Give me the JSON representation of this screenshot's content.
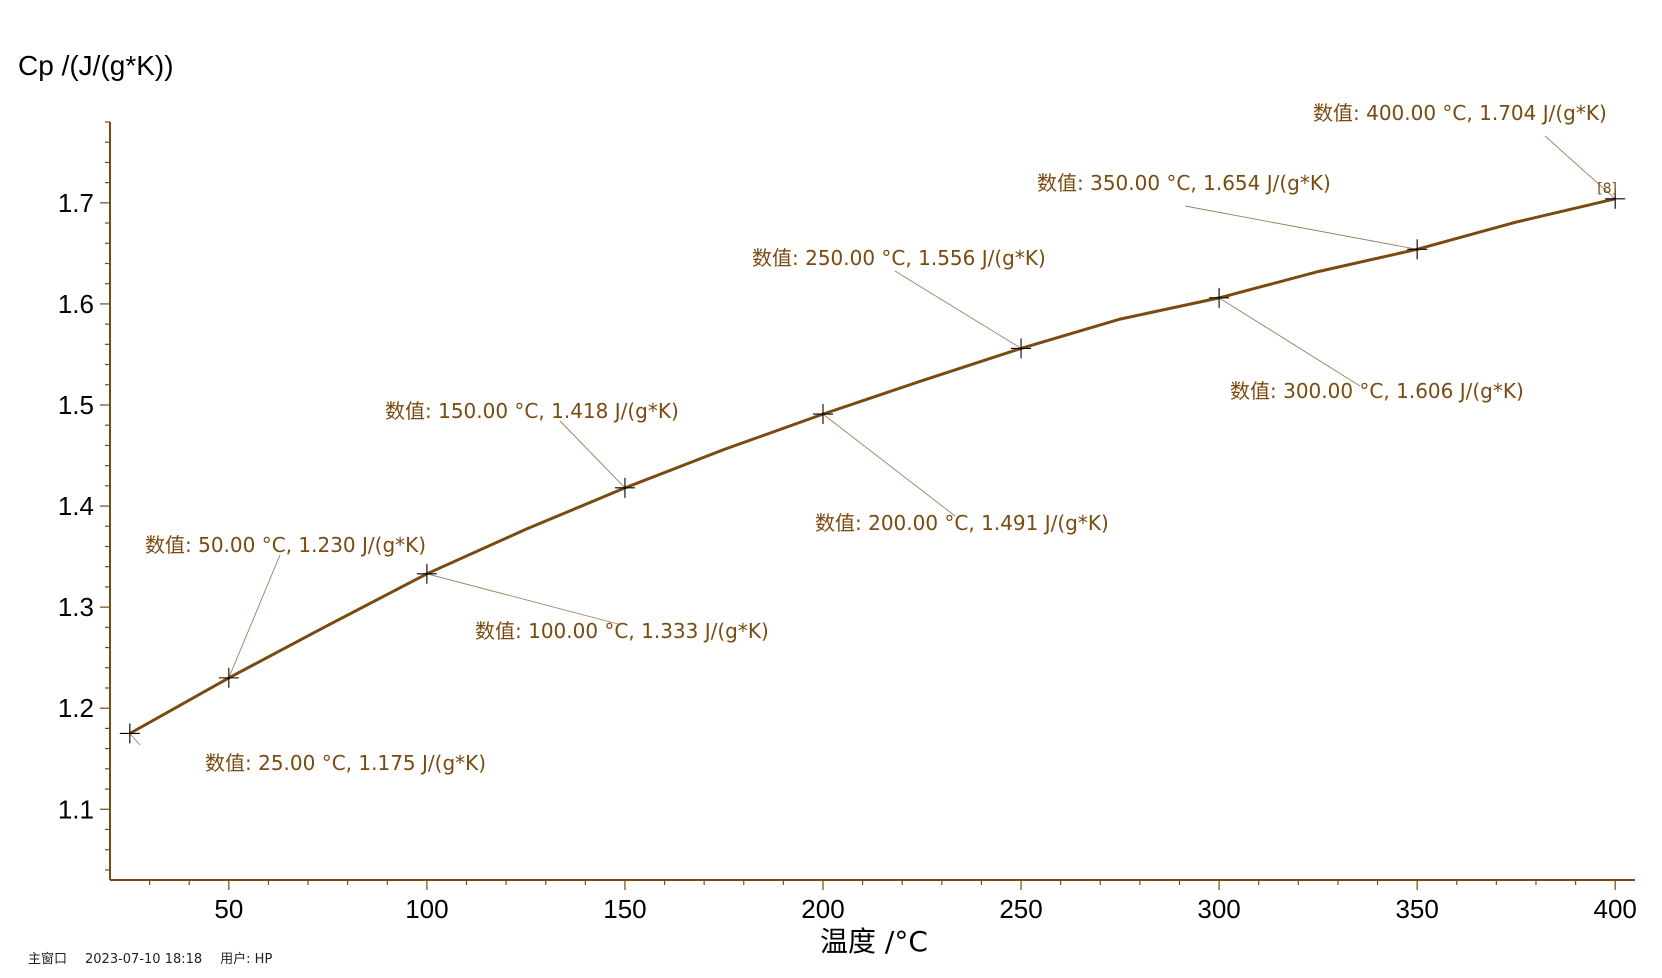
{
  "chart_data": {
    "type": "line",
    "ylabel": "Cp /(J/(g*K))",
    "xlabel": "温度 /°C",
    "xlim": [
      20,
      405
    ],
    "ylim": [
      1.03,
      1.78
    ],
    "x_ticks": [
      50,
      100,
      150,
      200,
      250,
      300,
      350,
      400
    ],
    "y_ticks": [
      1.1,
      1.2,
      1.3,
      1.4,
      1.5,
      1.6,
      1.7
    ],
    "line_color": "#7a4a10",
    "annotation_color": "#7a4a10",
    "series": [
      {
        "x": [
          25,
          50,
          75,
          100,
          125,
          150,
          175,
          200,
          225,
          250,
          275,
          300,
          325,
          350,
          375,
          400
        ],
        "y": [
          1.175,
          1.23,
          1.282,
          1.333,
          1.377,
          1.418,
          1.456,
          1.491,
          1.524,
          1.556,
          1.585,
          1.606,
          1.632,
          1.654,
          1.681,
          1.704
        ]
      }
    ],
    "annotations": [
      {
        "x": 25,
        "y": 1.175,
        "text": "数值: 25.00 °C, 1.175 J/(g*K)"
      },
      {
        "x": 50,
        "y": 1.23,
        "text": "数值: 50.00 °C, 1.230 J/(g*K)"
      },
      {
        "x": 100,
        "y": 1.333,
        "text": "数值: 100.00 °C, 1.333 J/(g*K)"
      },
      {
        "x": 150,
        "y": 1.418,
        "text": "数值: 150.00 °C, 1.418 J/(g*K)"
      },
      {
        "x": 200,
        "y": 1.491,
        "text": "数值: 200.00 °C, 1.491 J/(g*K)"
      },
      {
        "x": 250,
        "y": 1.556,
        "text": "数值: 250.00 °C, 1.556 J/(g*K)"
      },
      {
        "x": 300,
        "y": 1.606,
        "text": "数值: 300.00 °C, 1.606 J/(g*K)"
      },
      {
        "x": 350,
        "y": 1.654,
        "text": "数值: 350.00 °C, 1.654 J/(g*K)"
      },
      {
        "x": 400,
        "y": 1.704,
        "text": "数值: 400.00 °C, 1.704 J/(g*K)"
      }
    ],
    "end_marker": "[8]"
  },
  "footer": {
    "window": "主窗口",
    "datetime": "2023-07-10 18:18",
    "user": "用户: HP"
  }
}
